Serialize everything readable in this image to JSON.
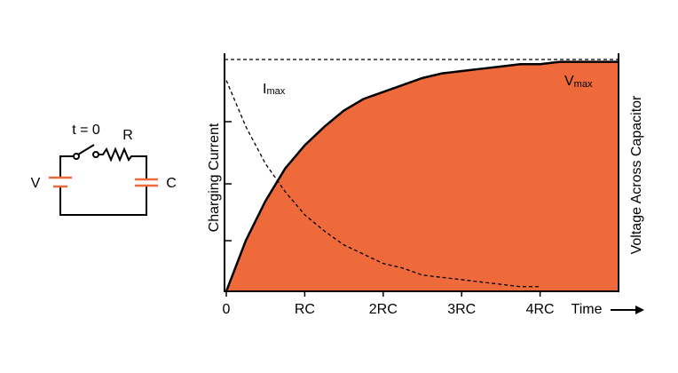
{
  "chart_data": {
    "type": "area",
    "x_label": "Time",
    "y_label": "Charging Current",
    "y2_label": "Voltage Across Capacitor",
    "xlim": [
      0,
      5
    ],
    "ylim": [
      0,
      1
    ],
    "xticks": [
      0,
      {
        "value": 1,
        "label": "RC"
      },
      {
        "value": 2,
        "label": "2RC"
      },
      {
        "value": 3,
        "label": "3RC"
      },
      {
        "value": 4,
        "label": "4RC"
      }
    ],
    "x": [
      0,
      0.25,
      0.5,
      0.75,
      1,
      1.25,
      1.5,
      1.75,
      2,
      2.25,
      2.5,
      2.75,
      3,
      3.25,
      3.5,
      3.75,
      4,
      4.25,
      4.5,
      4.75,
      5
    ],
    "series": [
      {
        "type": "area",
        "color": "#ee6a3b",
        "values": [
          0,
          0.22,
          0.39,
          0.53,
          0.63,
          0.71,
          0.78,
          0.83,
          0.86,
          0.89,
          0.92,
          0.94,
          0.95,
          0.96,
          0.97,
          0.98,
          0.98,
          0.99,
          0.99,
          0.99,
          0.99
        ]
      },
      {
        "type": "line",
        "style": "dashed",
        "color": "#000000",
        "values": [
          0.91,
          0.71,
          0.55,
          0.43,
          0.33,
          0.26,
          0.2,
          0.16,
          0.12,
          0.1,
          0.07,
          0.06,
          0.05,
          0.04,
          0.03,
          0.02,
          0.02,
          null,
          null,
          null,
          null
        ]
      }
    ],
    "annotations": [
      {
        "text": "I",
        "sub": "max"
      },
      {
        "text": "V",
        "sub": "max"
      }
    ]
  },
  "circuit": {
    "switch": "t = 0",
    "resistor": "R",
    "source": "V",
    "capacitor": "C"
  }
}
